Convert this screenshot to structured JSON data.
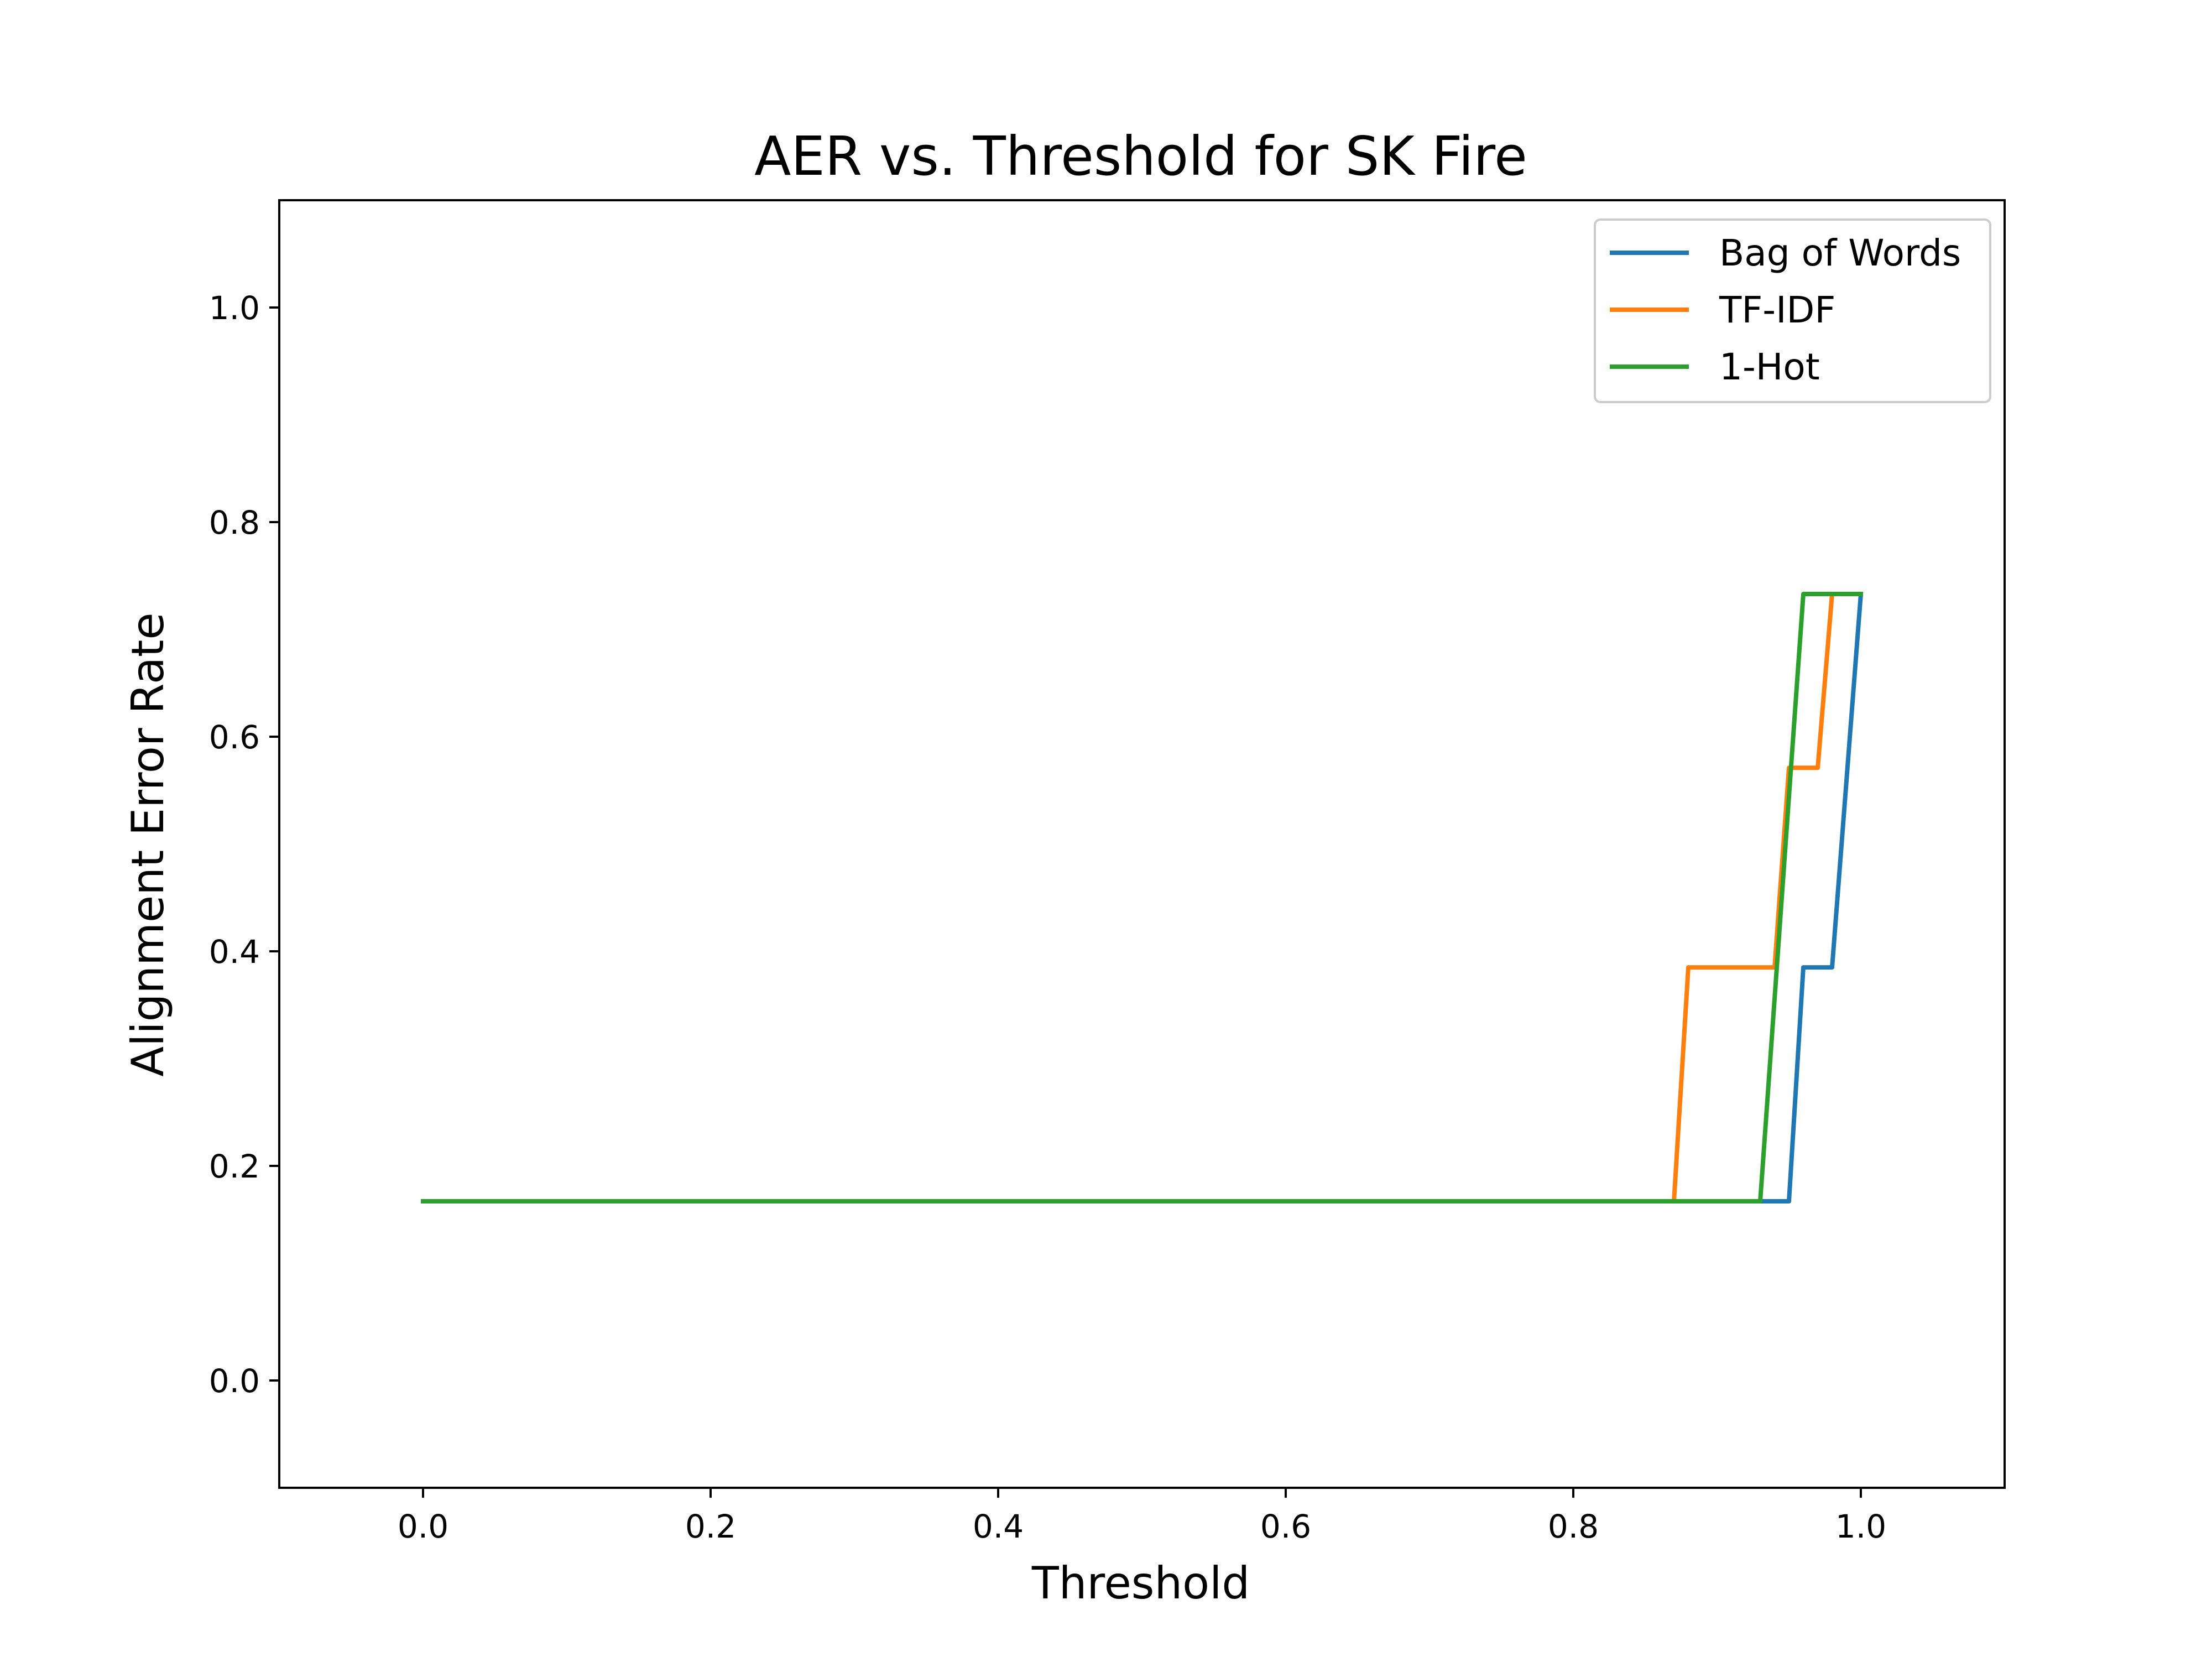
{
  "chart_data": {
    "type": "line",
    "title": "AER vs. Threshold for SK Fire",
    "xlabel": "Threshold",
    "ylabel": "Alignment Error Rate",
    "xlim": [
      -0.1,
      1.1
    ],
    "ylim": [
      -0.1,
      1.1
    ],
    "xticks": [
      0.0,
      0.2,
      0.4,
      0.6,
      0.8,
      1.0
    ],
    "xtick_labels": [
      "0.0",
      "0.2",
      "0.4",
      "0.6",
      "0.8",
      "1.0"
    ],
    "yticks": [
      0.0,
      0.2,
      0.4,
      0.6,
      0.8,
      1.0
    ],
    "ytick_labels": [
      "0.0",
      "0.2",
      "0.4",
      "0.6",
      "0.8",
      "1.0"
    ],
    "grid": false,
    "legend_position": "top-right",
    "series": [
      {
        "name": "Bag of Words",
        "color": "#1f77b4",
        "x": [
          0.0,
          0.95,
          0.96,
          0.98,
          1.0
        ],
        "y": [
          0.167,
          0.167,
          0.385,
          0.385,
          0.733
        ]
      },
      {
        "name": "TF-IDF",
        "color": "#ff7f0e",
        "x": [
          0.0,
          0.87,
          0.88,
          0.94,
          0.95,
          0.97,
          0.98
        ],
        "y": [
          0.167,
          0.167,
          0.385,
          0.385,
          0.571,
          0.571,
          0.733
        ]
      },
      {
        "name": "1-Hot",
        "color": "#2ca02c",
        "x": [
          0.0,
          0.93,
          0.96,
          1.0
        ],
        "y": [
          0.167,
          0.167,
          0.733,
          0.733
        ]
      }
    ]
  }
}
